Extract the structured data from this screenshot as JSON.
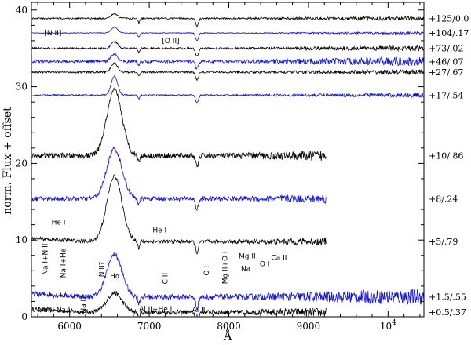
{
  "chart_data": {
    "type": "line",
    "xlabel": "Å",
    "ylabel": "norm. Flux + offset",
    "xlim": [
      5520,
      10450
    ],
    "ylim": [
      0,
      41
    ],
    "x_ticks": [
      {
        "value": 6000,
        "label": "6000"
      },
      {
        "value": 7000,
        "label": "7000"
      },
      {
        "value": 8000,
        "label": "8000"
      },
      {
        "value": 9000,
        "label": "9000"
      },
      {
        "value": 10000,
        "label": "10",
        "sup": "4"
      }
    ],
    "y_ticks": [
      0,
      10,
      20,
      30,
      40
    ],
    "colors": {
      "black": "#000000",
      "blue": "#1010e0"
    },
    "series": [
      {
        "name": "+0.5/.37",
        "color": "black",
        "offset": 0.6,
        "x_end": 9220,
        "noise": 0.3
      },
      {
        "name": "+1.5/.55",
        "color": "blue",
        "offset": 2.6,
        "x_end": 10450,
        "noise": 0.35
      },
      {
        "name": "+5/.79",
        "color": "black",
        "offset": 9.8,
        "x_end": 9220,
        "noise": 0.25
      },
      {
        "name": "+8/.24",
        "color": "blue",
        "offset": 15.4,
        "x_end": 9220,
        "noise": 0.3
      },
      {
        "name": "+10/.86",
        "color": "black",
        "offset": 21.0,
        "x_end": 9220,
        "noise": 0.35
      },
      {
        "name": "+17/.54",
        "color": "blue",
        "offset": 28.9,
        "x_end": 10450,
        "noise": 0.1
      },
      {
        "name": "+27/.67",
        "color": "black",
        "offset": 31.9,
        "x_end": 10450,
        "noise": 0.12
      },
      {
        "name": "+46/.07",
        "color": "blue",
        "offset": 33.3,
        "x_end": 10450,
        "noise": 0.2
      },
      {
        "name": "+73/.02",
        "color": "black",
        "offset": 35.0,
        "x_end": 10450,
        "noise": 0.12
      },
      {
        "name": "+104/.17",
        "color": "blue",
        "offset": 37.0,
        "x_end": 10450,
        "noise": 0.05
      },
      {
        "name": "+125/0.0",
        "color": "black",
        "offset": 38.9,
        "x_end": 10450,
        "noise": 0.1
      }
    ],
    "annotations": [
      {
        "text": "[N II]",
        "x": 5790,
        "y": 36.7
      },
      {
        "text": "[O II]",
        "x": 7270,
        "y": 35.7
      },
      {
        "text": "He I",
        "x": 5860,
        "y": 12.0
      },
      {
        "text": "He I",
        "x": 7130,
        "y": 11.0
      },
      {
        "text": "Na I+N II",
        "x": 5720,
        "y": 7.5,
        "rotate": true
      },
      {
        "text": "Na I+He",
        "x": 5950,
        "y": 7.0,
        "rotate": true
      },
      {
        "text": "N II?",
        "x": 6430,
        "y": 6.2,
        "rotate": true
      },
      {
        "text": "Hα",
        "x": 6570,
        "y": 5.0
      },
      {
        "text": "C II",
        "x": 7230,
        "y": 5.0,
        "rotate": true
      },
      {
        "text": "O I",
        "x": 7750,
        "y": 6.0,
        "rotate": true
      },
      {
        "text": "Mg II+O I",
        "x": 7980,
        "y": 6.4,
        "rotate": true
      },
      {
        "text": "Mg II",
        "x": 8230,
        "y": 7.6
      },
      {
        "text": "Na I",
        "x": 8240,
        "y": 6.0
      },
      {
        "text": "O I",
        "x": 8450,
        "y": 6.6
      },
      {
        "text": "Ca II",
        "x": 8630,
        "y": 7.4
      },
      {
        "text": "Na I",
        "x": 5690,
        "y": 0.6
      },
      {
        "text": "Na I",
        "x": 5920,
        "y": 0.6
      },
      {
        "text": "Na I?",
        "x": 6200,
        "y": 1.6,
        "rotate": true
      },
      {
        "text": "Al II+He I",
        "x": 7080,
        "y": 0.7
      },
      {
        "text": "Al II",
        "x": 7620,
        "y": 0.6
      }
    ]
  }
}
